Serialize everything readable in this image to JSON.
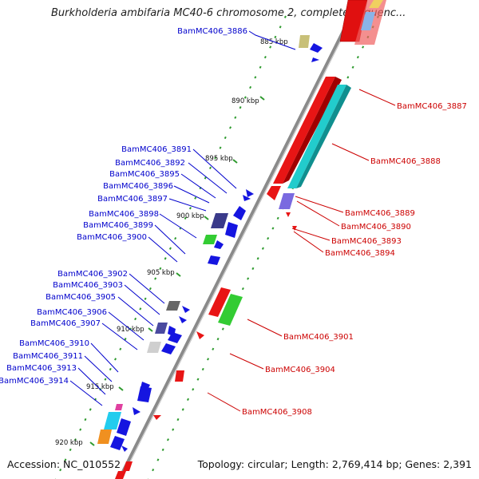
{
  "title": "Burkholderia ambifaria MC40-6 chromosome 2, complete sequenc...",
  "accession_text": "Accession: NC_010552",
  "topology_text": "Topology: circular; Length: 2,769,414 bp; Genes: 2,391",
  "ticks": [
    "885 kbp",
    "890 kbp",
    "895 kbp",
    "900 kbp",
    "905 kbp",
    "910 kbp",
    "915 kbp",
    "920 kbp"
  ],
  "forward_strand_labels": [
    "BamMC406_3887",
    "BamMC406_3888",
    "BamMC406_3889",
    "BamMC406_3890",
    "BamMC406_3893",
    "BamMC406_3894",
    "BamMC406_3901",
    "BamMC406_3904",
    "BamMC406_3908"
  ],
  "reverse_strand_labels": [
    "BamMC406_3886",
    "BamMC406_3891",
    "BamMC406_3892",
    "BamMC406_3895",
    "BamMC406_3896",
    "BamMC406_3897",
    "BamMC406_3898",
    "BamMC406_3899",
    "BamMC406_3900",
    "BamMC406_3902",
    "BamMC406_3903",
    "BamMC406_3905",
    "BamMC406_3906",
    "BamMC406_3907",
    "BamMC406_3910",
    "BamMC406_3911",
    "BamMC406_3913",
    "BamMC406_3914"
  ],
  "colors": {
    "forward_label": "#cc0000",
    "reverse_label": "#0000cc",
    "forward_gene": "#ee1111",
    "reverse_gene": "#1515e0",
    "cyan_feature": "#22cccc",
    "green_feature": "#33cc33",
    "backbone": "#888888",
    "tick_dots": "#2e9a2e"
  }
}
